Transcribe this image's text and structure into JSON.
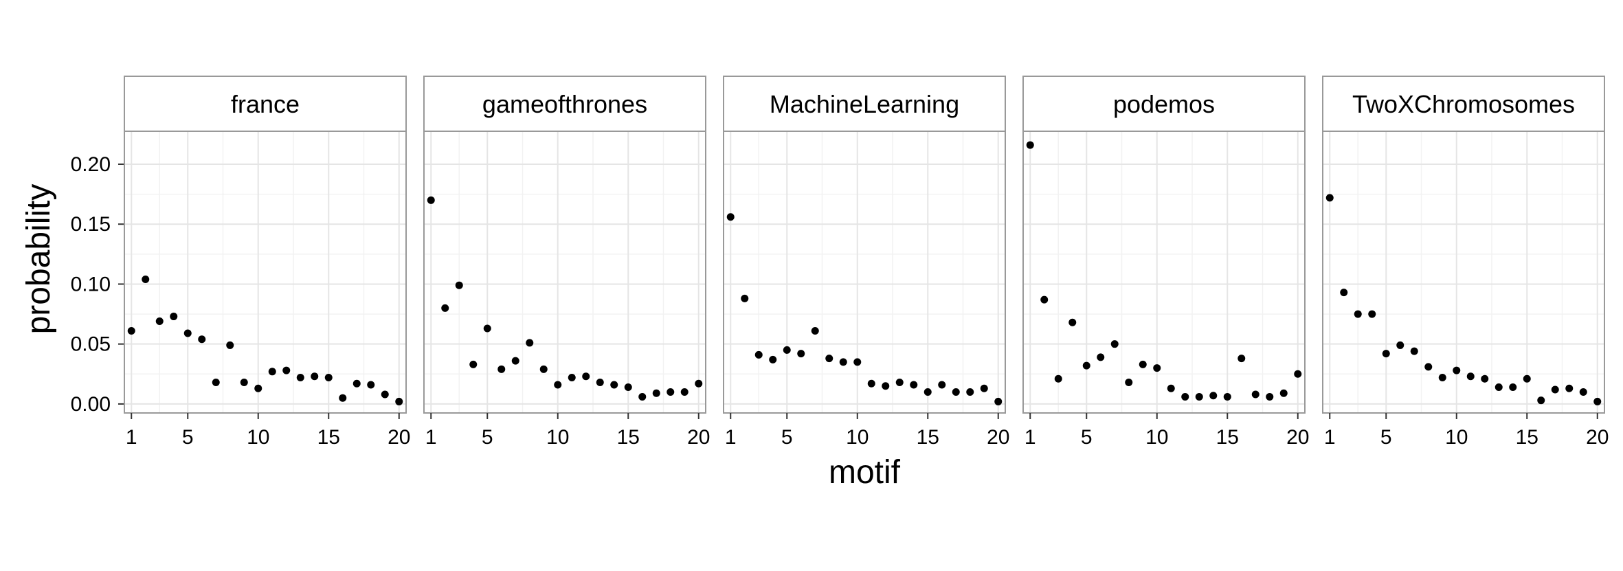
{
  "chart_data": {
    "type": "scatter",
    "layout": "facet_wrap",
    "xlabel": "motif",
    "ylabel": "probability",
    "x": [
      1,
      2,
      3,
      4,
      5,
      6,
      7,
      8,
      9,
      10,
      11,
      12,
      13,
      14,
      15,
      16,
      17,
      18,
      19,
      20
    ],
    "xticks": [
      1,
      5,
      10,
      15,
      20
    ],
    "xlim": [
      0.5,
      20.5
    ],
    "yticks": [
      0.0,
      0.05,
      0.1,
      0.15,
      0.2
    ],
    "ytick_labels": [
      "0.00",
      "0.05",
      "0.10",
      "0.15",
      "0.20"
    ],
    "ylim": [
      -0.0075,
      0.2275
    ],
    "grid": true,
    "point_color": "#000000",
    "panels": [
      {
        "name": "france",
        "values": [
          0.061,
          0.104,
          0.069,
          0.073,
          0.059,
          0.054,
          0.018,
          0.049,
          0.018,
          0.013,
          0.027,
          0.028,
          0.022,
          0.023,
          0.022,
          0.005,
          0.017,
          0.016,
          0.008,
          0.002
        ]
      },
      {
        "name": "gameofthrones",
        "values": [
          0.17,
          0.08,
          0.099,
          0.033,
          0.063,
          0.029,
          0.036,
          0.051,
          0.029,
          0.016,
          0.022,
          0.023,
          0.018,
          0.016,
          0.014,
          0.006,
          0.009,
          0.01,
          0.01,
          0.017
        ]
      },
      {
        "name": "MachineLearning",
        "values": [
          0.156,
          0.088,
          0.041,
          0.037,
          0.045,
          0.042,
          0.061,
          0.038,
          0.035,
          0.035,
          0.017,
          0.015,
          0.018,
          0.016,
          0.01,
          0.016,
          0.01,
          0.01,
          0.013,
          0.002
        ]
      },
      {
        "name": "podemos",
        "values": [
          0.216,
          0.087,
          0.021,
          0.068,
          0.032,
          0.039,
          0.05,
          0.018,
          0.033,
          0.03,
          0.013,
          0.006,
          0.006,
          0.007,
          0.006,
          0.038,
          0.008,
          0.006,
          0.009,
          0.025
        ]
      },
      {
        "name": "TwoXChromosomes",
        "values": [
          0.172,
          0.093,
          0.075,
          0.075,
          0.042,
          0.049,
          0.044,
          0.031,
          0.022,
          0.028,
          0.023,
          0.021,
          0.014,
          0.014,
          0.021,
          0.003,
          0.012,
          0.013,
          0.01,
          0.002
        ]
      }
    ]
  }
}
